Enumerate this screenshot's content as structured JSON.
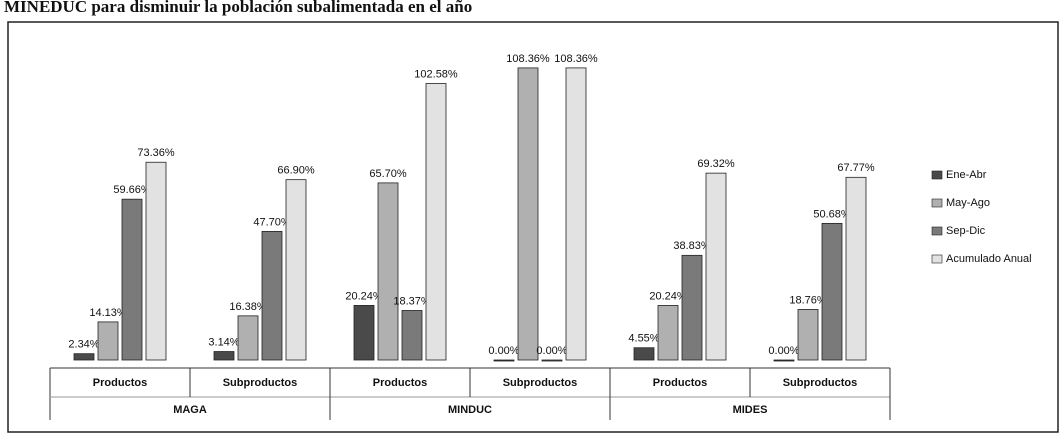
{
  "chart_data": {
    "type": "bar",
    "title": "MINEDUC para disminuir la población subalimentada en el año",
    "categories": [
      "Productos",
      "Subproductos",
      "Productos",
      "Subproductos",
      "Productos",
      "Subproductos"
    ],
    "groups": [
      "MAGA",
      "MINDUC",
      "MIDES"
    ],
    "ylim": [
      0,
      115
    ],
    "series": [
      {
        "name": "Ene-Abr",
        "color": "#4a4a4a",
        "values": [
          2.34,
          3.14,
          20.24,
          0.0,
          4.55,
          0.0
        ],
        "value_labels": [
          "2.34%",
          "3.14%",
          "20.24%",
          "0.00%",
          "4.55%",
          "0.00%"
        ]
      },
      {
        "name": "May-Ago",
        "color": "#b0b0b0",
        "values": [
          14.13,
          16.38,
          65.7,
          108.36,
          20.24,
          18.76
        ],
        "value_labels": [
          "14.13%",
          "16.38%",
          "65.70%",
          "108.36%",
          "20.24%",
          "18.76%"
        ]
      },
      {
        "name": "Sep-Dic",
        "color": "#7a7a7a",
        "values": [
          59.66,
          47.7,
          18.37,
          0.0,
          38.83,
          50.68
        ],
        "value_labels": [
          "59.66%",
          "47.70%",
          "18.37%",
          "0.00%",
          "38.83%",
          "50.68%"
        ]
      },
      {
        "name": "Acumulado Anual",
        "color": "#e2e2e2",
        "values": [
          73.36,
          66.9,
          102.58,
          108.36,
          69.32,
          67.77
        ],
        "value_labels": [
          "73.36%",
          "66.90%",
          "102.58%",
          "108.36%",
          "69.32%",
          "67.77%"
        ]
      }
    ]
  }
}
